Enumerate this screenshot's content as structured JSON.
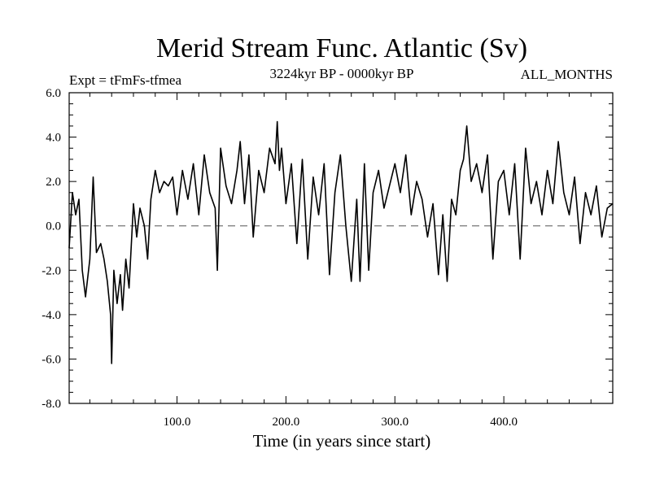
{
  "chart_data": {
    "type": "line",
    "title": "Merid Stream Func. Atlantic (Sv)",
    "subtitle_left": "Expt = tFmFs-tfmea",
    "subtitle_center": "3224kyr BP - 0000kyr BP",
    "subtitle_right": "ALL_MONTHS",
    "xlabel": "Time (in years since start)",
    "ylabel": "",
    "xlim": [
      1,
      500
    ],
    "ylim": [
      -8.0,
      6.0
    ],
    "xticks": [
      100,
      200,
      300,
      400
    ],
    "xtick_labels": [
      "100.0",
      "200.0",
      "300.0",
      "400.0"
    ],
    "yticks": [
      -8,
      -6,
      -4,
      -2,
      0,
      2,
      4,
      6
    ],
    "ytick_labels": [
      "-8.0",
      "-6.0",
      "-4.0",
      "-2.0",
      "0.0",
      "2.0",
      "4.0",
      "6.0"
    ],
    "reference_line": {
      "y": 0.0,
      "style": "dashed"
    },
    "grid": false,
    "series": [
      {
        "name": "Merid Stream Func. Atlantic",
        "x": [
          1,
          4,
          7,
          10,
          13,
          16,
          20,
          23,
          26,
          30,
          33,
          36,
          39,
          40,
          42,
          45,
          48,
          50,
          53,
          56,
          60,
          63,
          66,
          70,
          73,
          76,
          80,
          84,
          88,
          92,
          96,
          100,
          105,
          110,
          115,
          120,
          125,
          130,
          135,
          137,
          140,
          145,
          150,
          155,
          158,
          162,
          166,
          170,
          175,
          180,
          185,
          190,
          192,
          194,
          196,
          200,
          205,
          210,
          215,
          220,
          225,
          230,
          235,
          240,
          245,
          250,
          255,
          260,
          265,
          268,
          272,
          276,
          280,
          285,
          290,
          295,
          300,
          305,
          310,
          315,
          320,
          325,
          330,
          335,
          340,
          344,
          348,
          352,
          356,
          360,
          363,
          366,
          370,
          375,
          380,
          385,
          390,
          395,
          400,
          405,
          410,
          415,
          420,
          425,
          430,
          435,
          440,
          445,
          450,
          455,
          460,
          465,
          470,
          475,
          480,
          485,
          490,
          495,
          500
        ],
        "y": [
          -1.0,
          1.5,
          0.5,
          1.2,
          -2.0,
          -3.2,
          -1.5,
          2.2,
          -1.2,
          -0.8,
          -1.5,
          -2.5,
          -4.0,
          -6.2,
          -2.0,
          -3.5,
          -2.2,
          -3.8,
          -1.5,
          -2.8,
          1.0,
          -0.5,
          0.8,
          0.0,
          -1.5,
          1.2,
          2.5,
          1.5,
          2.0,
          1.8,
          2.2,
          0.5,
          2.5,
          1.2,
          2.8,
          0.5,
          3.2,
          1.5,
          0.8,
          -2.0,
          3.5,
          1.8,
          1.0,
          2.5,
          3.8,
          1.0,
          3.2,
          -0.5,
          2.5,
          1.5,
          3.5,
          2.8,
          4.7,
          2.5,
          3.5,
          1.0,
          2.8,
          -0.8,
          3.0,
          -1.5,
          2.2,
          0.5,
          2.8,
          -2.2,
          1.5,
          3.2,
          0.0,
          -2.5,
          1.2,
          -2.5,
          2.8,
          -2.0,
          1.5,
          2.5,
          0.8,
          1.8,
          2.8,
          1.5,
          3.2,
          0.5,
          2.0,
          1.2,
          -0.5,
          1.0,
          -2.2,
          0.5,
          -2.5,
          1.2,
          0.5,
          2.5,
          3.0,
          4.5,
          2.0,
          2.8,
          1.5,
          3.2,
          -1.5,
          2.0,
          2.5,
          0.5,
          2.8,
          -1.5,
          3.5,
          1.0,
          2.0,
          0.5,
          2.5,
          1.0,
          3.8,
          1.5,
          0.5,
          2.2,
          -0.8,
          1.5,
          0.5,
          1.8,
          -0.5,
          0.8,
          1.0
        ]
      }
    ]
  }
}
